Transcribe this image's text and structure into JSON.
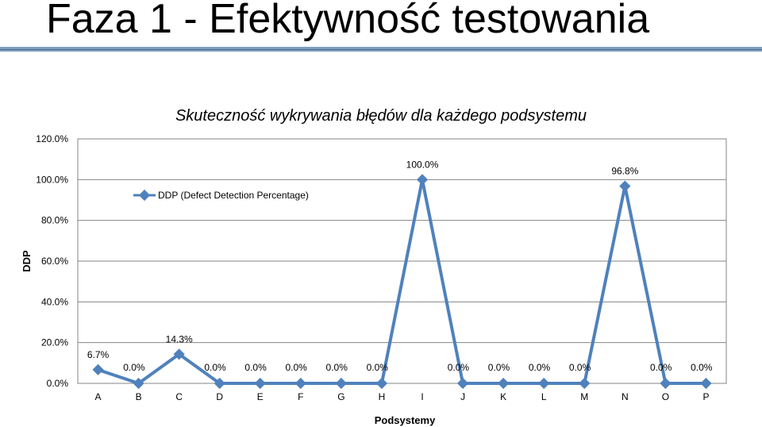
{
  "slide": {
    "title": "Faza 1 - Efektywność testowania"
  },
  "chart_data": {
    "type": "line",
    "title": "Skuteczność wykrywania błędów dla każdego podsystemu",
    "xlabel": "Podsystemy",
    "ylabel": "DDP",
    "categories": [
      "A",
      "B",
      "C",
      "D",
      "E",
      "F",
      "G",
      "H",
      "I",
      "J",
      "K",
      "L",
      "M",
      "N",
      "O",
      "P"
    ],
    "series": [
      {
        "name": "DDP (Defect Detection Percentage)",
        "values": [
          6.7,
          0.0,
          14.3,
          0.0,
          0.0,
          0.0,
          0.0,
          0.0,
          100.0,
          0.0,
          0.0,
          0.0,
          0.0,
          96.8,
          0.0,
          0.0
        ],
        "labels": [
          "6.7%",
          "0.0%",
          "14.3%",
          "0.0%",
          "0.0%",
          "0.0%",
          "0.0%",
          "0.0%",
          "100.0%",
          "0.0%",
          "0.0%",
          "0.0%",
          "0.0%",
          "96.8%",
          "0.0%",
          "0.0%"
        ],
        "color": "#4f81bd"
      }
    ],
    "y_ticks": [
      "0.0%",
      "20.0%",
      "40.0%",
      "60.0%",
      "80.0%",
      "100.0%",
      "120.0%"
    ],
    "ylim": [
      0,
      120
    ],
    "grid": true,
    "legend_position": "top-left"
  }
}
